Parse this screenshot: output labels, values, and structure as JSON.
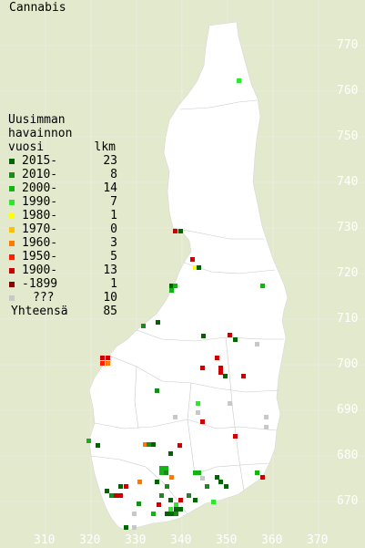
{
  "title": "Cannabis",
  "legend": {
    "heading_lines": [
      "Uusimman",
      "havainnon",
      "vuosi"
    ],
    "count_header": "lkm",
    "rows": [
      {
        "label": "2015-",
        "count": "23",
        "color": "#006400"
      },
      {
        "label": "2010-",
        "count": "8",
        "color": "#1a8a1a"
      },
      {
        "label": "2000-",
        "count": "14",
        "color": "#14b414"
      },
      {
        "label": "1990-",
        "count": "7",
        "color": "#2ee62e"
      },
      {
        "label": "1980-",
        "count": "1",
        "color": "#ffff00"
      },
      {
        "label": "1970-",
        "count": "0",
        "color": "#ffc000"
      },
      {
        "label": "1960-",
        "count": "3",
        "color": "#ff7800"
      },
      {
        "label": "1950-",
        "count": "5",
        "color": "#ff2000"
      },
      {
        "label": "1900-",
        "count": "13",
        "color": "#cc0000"
      },
      {
        "label": "-1899",
        "count": "1",
        "color": "#8b0000"
      },
      {
        "label": "???",
        "count": "10",
        "color": "#c8c8c8"
      }
    ],
    "total_label": "Yhteensä",
    "total_count": "85"
  },
  "axes": {
    "x_ticks": [
      "310",
      "320",
      "330",
      "340",
      "350",
      "360",
      "370"
    ],
    "y_ticks": [
      "770",
      "760",
      "750",
      "740",
      "730",
      "720",
      "710",
      "700",
      "690",
      "680",
      "670"
    ]
  },
  "colors": {
    "background": "#e3e9cc",
    "land": "#ffffff",
    "grid": "#e8e8e8",
    "ticks": "#ffffff"
  }
}
